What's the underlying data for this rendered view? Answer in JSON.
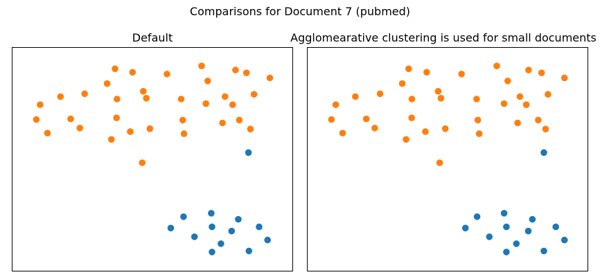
{
  "figure": {
    "suptitle": "Comparisons for Document 7 (pubmed)"
  },
  "colors": {
    "cluster_a": "#ff7f0e",
    "cluster_b": "#1f77b4"
  },
  "chart_data": [
    {
      "type": "scatter",
      "title": "Default",
      "xlabel": "",
      "ylabel": "",
      "xlim": [
        0,
        100
      ],
      "ylim": [
        0,
        100
      ],
      "grid": false,
      "axes_visible": false,
      "series": [
        {
          "color": "#ff7f0e",
          "x": [
            35.3,
            42.2,
            55.7,
            69.3,
            82.6,
            86.9,
            96.1,
            71.7,
            32.2,
            46.4,
            5.9,
            13.9,
            23.4,
            36.1,
            47.6,
            61.3,
            78.5,
            81.5,
            89.9,
            4.4,
            17.9,
            35.9,
            61.9,
            71.0,
            84.1,
            8.8,
            21.5,
            77.5,
            88.5,
            41.3,
            49.0,
            62.4,
            33.9,
            46.0
          ],
          "y": [
            94.6,
            92.9,
            92.0,
            96.0,
            94.0,
            92.6,
            90.1,
            88.6,
            87.3,
            83.5,
            76.9,
            80.9,
            82.3,
            79.7,
            80.1,
            79.7,
            80.9,
            76.9,
            82.0,
            69.6,
            69.9,
            70.4,
            69.3,
            77.4,
            69.3,
            62.9,
            65.4,
            67.9,
            64.9,
            63.6,
            65.1,
            62.6,
            59.8,
            48.3
          ]
        },
        {
          "color": "#1f77b4",
          "x": [
            87.7,
            73.1,
            62.2,
            57.2,
            73.4,
            83.7,
            91.9,
            66.5,
            81.1,
            76.9,
            95.2,
            73.4,
            87.9
          ],
          "y": [
            53.3,
            23.4,
            21.7,
            16.1,
            16.7,
            20.4,
            16.7,
            11.8,
            14.6,
            8.4,
            10.2,
            4.3,
            4.8
          ]
        }
      ]
    },
    {
      "type": "scatter",
      "title": "Agglomearative clustering is used for small documents",
      "xlabel": "",
      "ylabel": "",
      "xlim": [
        0,
        100
      ],
      "ylim": [
        0,
        100
      ],
      "grid": false,
      "axes_visible": false,
      "series": [
        {
          "color": "#ff7f0e",
          "x": [
            34.7,
            41.8,
            55.5,
            69.3,
            81.8,
            86.9,
            95.9,
            73.6,
            32.2,
            46.3,
            6.1,
            13.8,
            23.5,
            36.0,
            47.4,
            61.4,
            78.4,
            80.9,
            89.4,
            4.4,
            18.1,
            35.9,
            61.9,
            72.2,
            85.6,
            8.8,
            21.4,
            77.5,
            88.5,
            41.3,
            49.1,
            62.4,
            33.7,
            46.9
          ],
          "y": [
            94.6,
            92.9,
            92.0,
            96.0,
            94.0,
            92.6,
            90.1,
            88.6,
            87.3,
            83.5,
            76.9,
            80.9,
            82.3,
            79.7,
            80.1,
            79.7,
            80.9,
            76.9,
            82.0,
            69.6,
            69.9,
            70.4,
            69.3,
            77.4,
            69.3,
            62.9,
            65.4,
            67.9,
            64.9,
            63.6,
            65.1,
            62.6,
            59.8,
            48.3
          ]
        },
        {
          "color": "#1f77b4",
          "x": [
            87.8,
            72.2,
            61.6,
            57.0,
            73.1,
            83.3,
            92.5,
            66.4,
            81.7,
            77.0,
            95.9,
            73.1,
            87.8
          ],
          "y": [
            53.3,
            23.4,
            21.7,
            16.1,
            16.7,
            20.4,
            16.7,
            11.8,
            14.6,
            8.4,
            10.2,
            4.3,
            4.8
          ]
        }
      ]
    }
  ]
}
